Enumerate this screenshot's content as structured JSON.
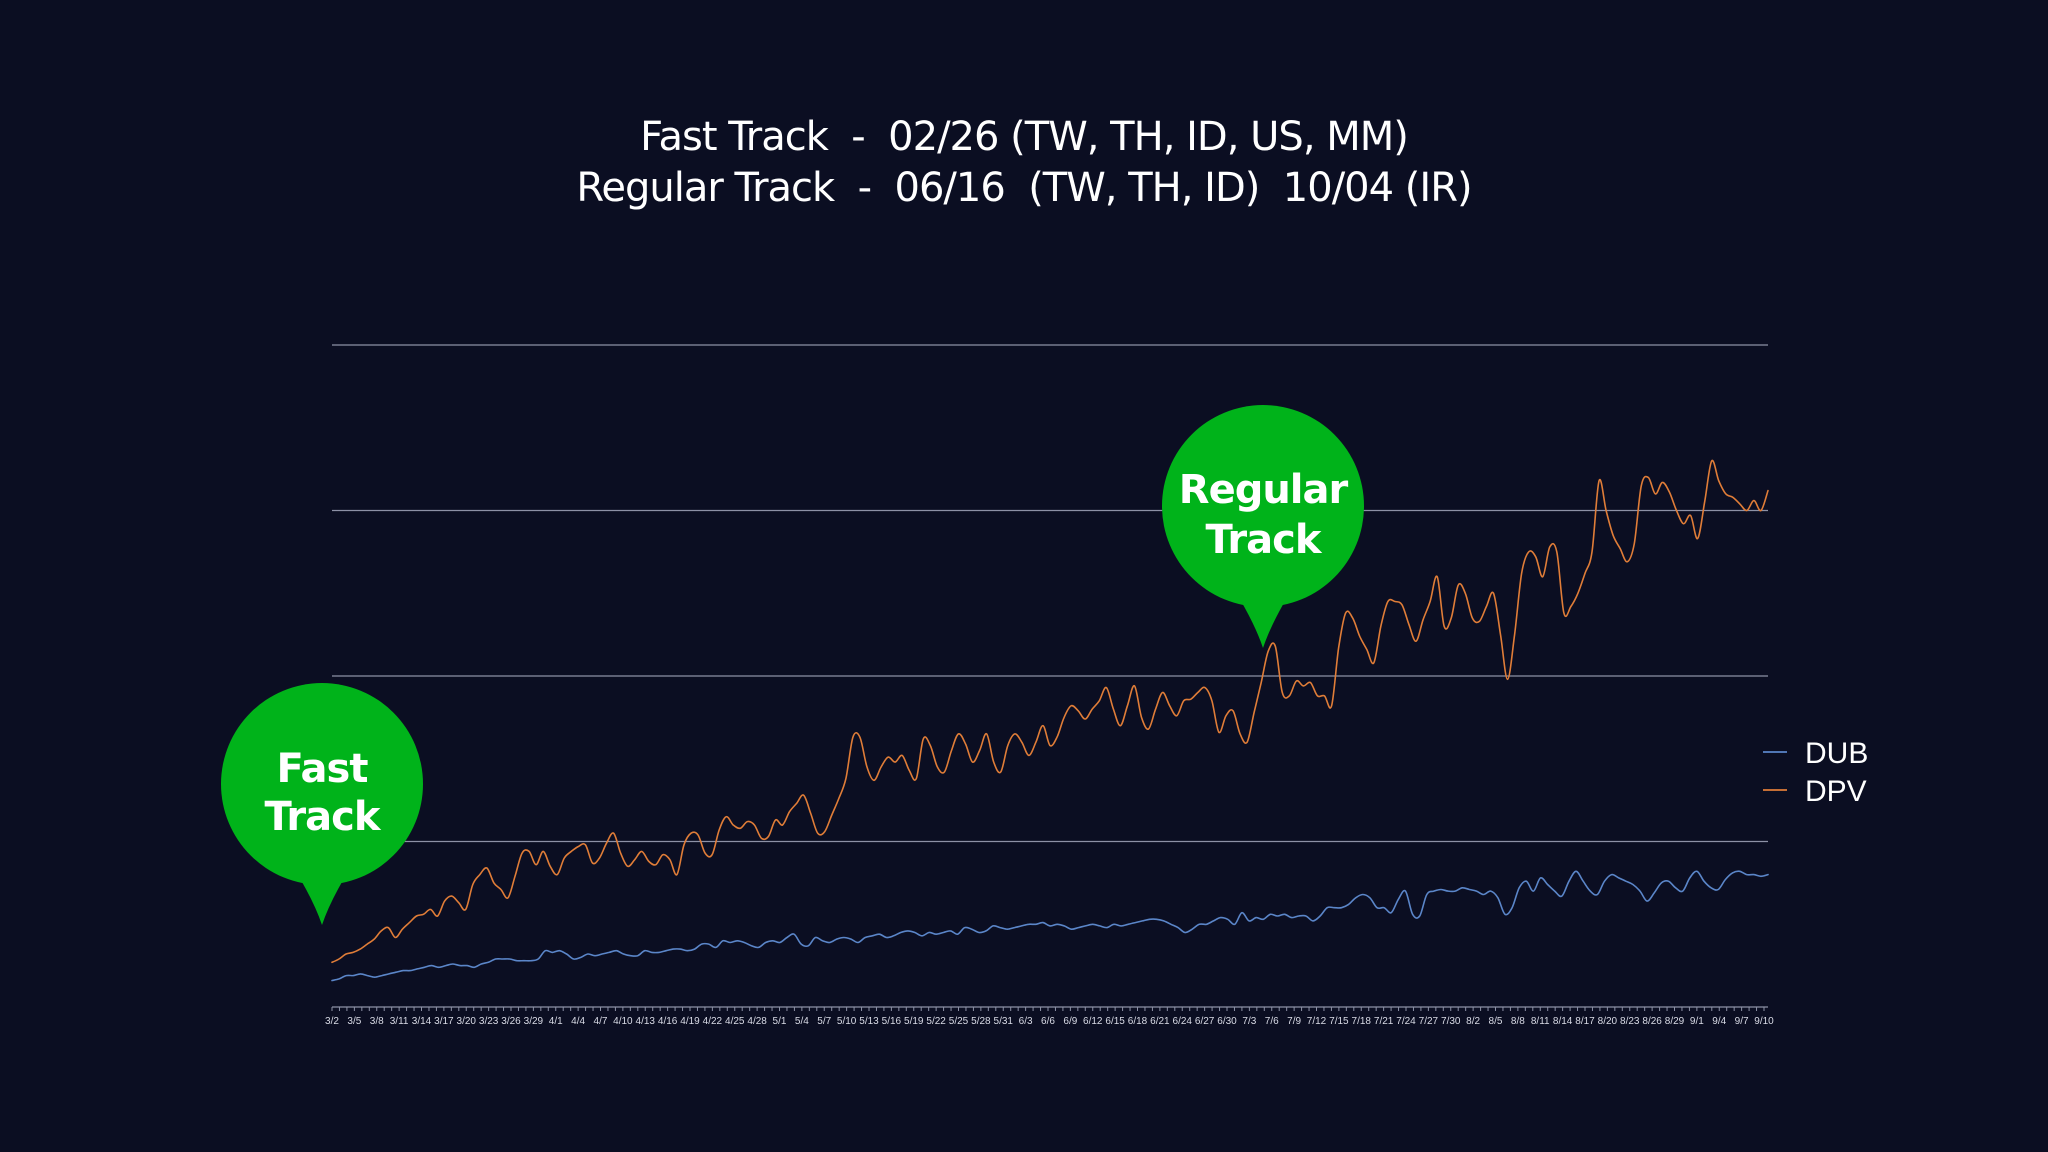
{
  "title_lines": [
    "Fast Track  -  02/26 (TW, TH, ID, US, MM)",
    "Regular Track  -  06/16  (TW, TH, ID)  10/04 (IR)"
  ],
  "colors": {
    "background": "#0b0e22",
    "dub": "#5b86c9",
    "dpv": "#e07d38",
    "callout": "#00b31a",
    "gridline": "#8d91a6"
  },
  "callouts": [
    {
      "id": "fast-track",
      "lines": [
        "Fast",
        "Track"
      ],
      "date_index": 0
    },
    {
      "id": "regular-track",
      "lines": [
        "Regular",
        "Track"
      ],
      "date_index": 125
    }
  ],
  "chart_data": {
    "type": "line",
    "x_labels": [
      "3/2",
      "3/5",
      "3/8",
      "3/11",
      "3/14",
      "3/17",
      "3/20",
      "3/23",
      "3/26",
      "3/29",
      "4/1",
      "4/4",
      "4/7",
      "4/10",
      "4/13",
      "4/16",
      "4/19",
      "4/22",
      "4/25",
      "4/28",
      "5/1",
      "5/4",
      "5/7",
      "5/10",
      "5/13",
      "5/16",
      "5/19",
      "5/22",
      "5/25",
      "5/28",
      "5/31",
      "6/3",
      "6/6",
      "6/9",
      "6/12",
      "6/15",
      "6/18",
      "6/21",
      "6/24",
      "6/27",
      "6/30",
      "7/3",
      "7/6",
      "7/9",
      "7/12",
      "7/15",
      "7/18",
      "7/21",
      "7/24",
      "7/27",
      "7/30",
      "8/2",
      "8/5",
      "8/8",
      "8/11",
      "8/14",
      "8/17",
      "8/20",
      "8/23",
      "8/26",
      "8/29",
      "9/1",
      "9/4",
      "9/7",
      "9/10"
    ],
    "y_axis_labels_shown": false,
    "ylim": [
      0,
      4
    ],
    "gridlines": [
      1,
      2,
      3,
      4
    ],
    "legend": {
      "position": "right",
      "entries": [
        "DUB",
        "DPV"
      ]
    },
    "series": [
      {
        "name": "DUB",
        "key": "dub",
        "values": [
          0.16,
          0.17,
          0.19,
          0.19,
          0.2,
          0.19,
          0.18,
          0.19,
          0.2,
          0.21,
          0.22,
          0.22,
          0.23,
          0.24,
          0.25,
          0.24,
          0.25,
          0.26,
          0.25,
          0.25,
          0.24,
          0.26,
          0.27,
          0.29,
          0.29,
          0.29,
          0.28,
          0.28,
          0.28,
          0.29,
          0.34,
          0.33,
          0.34,
          0.32,
          0.29,
          0.3,
          0.32,
          0.31,
          0.32,
          0.33,
          0.34,
          0.32,
          0.31,
          0.31,
          0.34,
          0.33,
          0.33,
          0.34,
          0.35,
          0.35,
          0.34,
          0.35,
          0.38,
          0.38,
          0.36,
          0.4,
          0.39,
          0.4,
          0.39,
          0.37,
          0.36,
          0.39,
          0.4,
          0.39,
          0.42,
          0.44,
          0.38,
          0.37,
          0.42,
          0.4,
          0.39,
          0.41,
          0.42,
          0.41,
          0.39,
          0.42,
          0.43,
          0.44,
          0.42,
          0.43,
          0.45,
          0.46,
          0.45,
          0.43,
          0.45,
          0.44,
          0.45,
          0.46,
          0.44,
          0.48,
          0.47,
          0.45,
          0.46,
          0.49,
          0.48,
          0.47,
          0.48,
          0.49,
          0.5,
          0.5,
          0.51,
          0.49,
          0.5,
          0.49,
          0.47,
          0.48,
          0.49,
          0.5,
          0.49,
          0.48,
          0.5,
          0.49,
          0.5,
          0.51,
          0.52,
          0.53,
          0.53,
          0.52,
          0.5,
          0.48,
          0.45,
          0.47,
          0.5,
          0.5,
          0.52,
          0.54,
          0.53,
          0.5,
          0.57,
          0.52,
          0.54,
          0.53,
          0.56,
          0.55,
          0.56,
          0.54,
          0.55,
          0.55,
          0.52,
          0.55,
          0.6,
          0.6,
          0.6,
          0.62,
          0.66,
          0.68,
          0.66,
          0.6,
          0.6,
          0.57,
          0.65,
          0.7,
          0.56,
          0.55,
          0.68,
          0.7,
          0.71,
          0.7,
          0.7,
          0.72,
          0.71,
          0.7,
          0.68,
          0.7,
          0.66,
          0.56,
          0.6,
          0.72,
          0.76,
          0.7,
          0.78,
          0.74,
          0.7,
          0.67,
          0.76,
          0.82,
          0.76,
          0.7,
          0.68,
          0.76,
          0.8,
          0.78,
          0.76,
          0.74,
          0.7,
          0.64,
          0.69,
          0.75,
          0.76,
          0.72,
          0.7,
          0.78,
          0.82,
          0.76,
          0.72,
          0.71,
          0.77,
          0.81,
          0.82,
          0.8,
          0.8,
          0.79,
          0.8
        ]
      },
      {
        "name": "DPV",
        "key": "dpv",
        "values": [
          0.27,
          0.29,
          0.32,
          0.33,
          0.35,
          0.38,
          0.41,
          0.46,
          0.48,
          0.42,
          0.47,
          0.51,
          0.55,
          0.56,
          0.59,
          0.55,
          0.64,
          0.67,
          0.63,
          0.59,
          0.74,
          0.8,
          0.84,
          0.75,
          0.71,
          0.66,
          0.79,
          0.93,
          0.94,
          0.86,
          0.94,
          0.85,
          0.8,
          0.9,
          0.94,
          0.97,
          0.98,
          0.87,
          0.9,
          0.99,
          1.05,
          0.93,
          0.85,
          0.89,
          0.94,
          0.88,
          0.86,
          0.92,
          0.89,
          0.8,
          0.98,
          1.05,
          1.04,
          0.93,
          0.92,
          1.07,
          1.15,
          1.1,
          1.08,
          1.12,
          1.1,
          1.02,
          1.03,
          1.13,
          1.1,
          1.18,
          1.23,
          1.28,
          1.17,
          1.05,
          1.06,
          1.16,
          1.26,
          1.38,
          1.63,
          1.63,
          1.45,
          1.37,
          1.45,
          1.51,
          1.48,
          1.52,
          1.43,
          1.38,
          1.62,
          1.58,
          1.45,
          1.42,
          1.55,
          1.65,
          1.59,
          1.48,
          1.55,
          1.65,
          1.48,
          1.42,
          1.58,
          1.65,
          1.6,
          1.52,
          1.6,
          1.7,
          1.58,
          1.63,
          1.75,
          1.82,
          1.79,
          1.74,
          1.8,
          1.85,
          1.93,
          1.8,
          1.7,
          1.82,
          1.94,
          1.75,
          1.68,
          1.8,
          1.9,
          1.82,
          1.76,
          1.85,
          1.86,
          1.9,
          1.93,
          1.85,
          1.66,
          1.76,
          1.79,
          1.65,
          1.6,
          1.78,
          1.96,
          2.15,
          2.18,
          1.9,
          1.88,
          1.97,
          1.94,
          1.96,
          1.88,
          1.88,
          1.82,
          2.17,
          2.38,
          2.35,
          2.24,
          2.16,
          2.08,
          2.3,
          2.45,
          2.45,
          2.43,
          2.31,
          2.21,
          2.34,
          2.45,
          2.6,
          2.3,
          2.35,
          2.55,
          2.5,
          2.35,
          2.33,
          2.42,
          2.5,
          2.25,
          1.98,
          2.25,
          2.62,
          2.75,
          2.72,
          2.6,
          2.78,
          2.75,
          2.38,
          2.42,
          2.5,
          2.62,
          2.75,
          3.18,
          3.0,
          2.85,
          2.77,
          2.69,
          2.8,
          3.15,
          3.2,
          3.1,
          3.17,
          3.11,
          3.0,
          2.92,
          2.97,
          2.83,
          3.05,
          3.3,
          3.18,
          3.1,
          3.08,
          3.04,
          3.0,
          3.06,
          3.0,
          3.12
        ]
      }
    ]
  }
}
